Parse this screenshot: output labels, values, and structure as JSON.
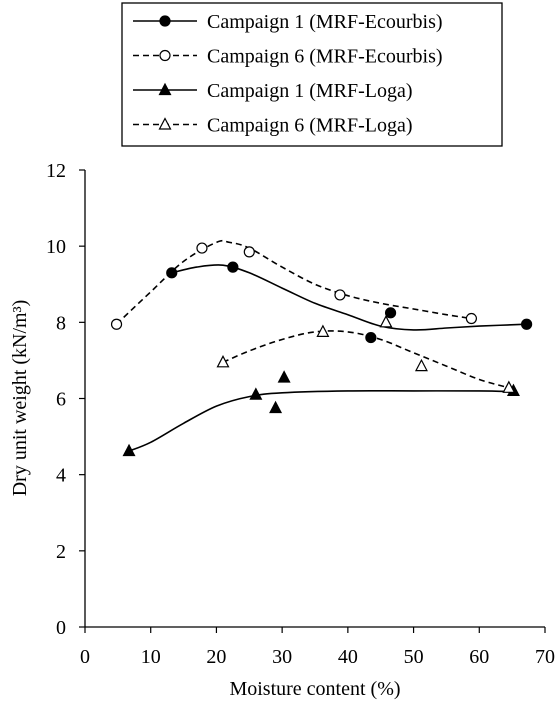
{
  "chart_data": {
    "type": "scatter",
    "xlabel": "Moisture content (%)",
    "ylabel": "Dry unit weight (kN/m³)",
    "xlim": [
      0,
      70
    ],
    "ylim": [
      0,
      12
    ],
    "xticks": [
      0,
      10,
      20,
      30,
      40,
      50,
      60,
      70
    ],
    "yticks": [
      0,
      2,
      4,
      6,
      8,
      10,
      12
    ],
    "xtick_labels": [
      "0",
      "10",
      "20",
      "30",
      "40",
      "50",
      "60",
      "70"
    ],
    "ytick_labels": [
      "0",
      "2",
      "4",
      "6",
      "8",
      "10",
      "12"
    ],
    "grid": false,
    "legend_position": "top",
    "series": [
      {
        "name": "Campaign 1 (MRF-Ecourbis)",
        "marker": "circle-filled",
        "line": "solid",
        "points": [
          [
            13.2,
            9.3
          ],
          [
            22.5,
            9.45
          ],
          [
            43.5,
            7.6
          ],
          [
            46.5,
            8.25
          ],
          [
            67.2,
            7.95
          ]
        ],
        "curve": [
          [
            13.2,
            9.3
          ],
          [
            17,
            9.45
          ],
          [
            21,
            9.5
          ],
          [
            25,
            9.3
          ],
          [
            30,
            8.9
          ],
          [
            35,
            8.5
          ],
          [
            40,
            8.2
          ],
          [
            45,
            7.9
          ],
          [
            50,
            7.8
          ],
          [
            55,
            7.85
          ],
          [
            60,
            7.9
          ],
          [
            67.2,
            7.95
          ]
        ]
      },
      {
        "name": "Campaign 6 (MRF-Ecourbis)",
        "marker": "circle-open",
        "line": "dashed",
        "points": [
          [
            4.8,
            7.95
          ],
          [
            17.8,
            9.95
          ],
          [
            25,
            9.85
          ],
          [
            38.8,
            8.72
          ],
          [
            58.8,
            8.1
          ]
        ],
        "curve": [
          [
            4.8,
            7.95
          ],
          [
            10,
            8.8
          ],
          [
            15,
            9.6
          ],
          [
            20,
            10.1
          ],
          [
            22,
            10.1
          ],
          [
            25,
            9.95
          ],
          [
            30,
            9.45
          ],
          [
            35,
            9.0
          ],
          [
            40,
            8.7
          ],
          [
            45,
            8.5
          ],
          [
            50,
            8.35
          ],
          [
            55,
            8.2
          ],
          [
            58.8,
            8.1
          ]
        ]
      },
      {
        "name": "Campaign 1 (MRF-Loga)",
        "marker": "triangle-filled",
        "line": "solid",
        "points": [
          [
            6.7,
            4.62
          ],
          [
            26,
            6.1
          ],
          [
            29,
            5.75
          ],
          [
            30.3,
            6.55
          ],
          [
            65.2,
            6.2
          ]
        ],
        "curve": [
          [
            6.7,
            4.62
          ],
          [
            10,
            4.85
          ],
          [
            15,
            5.35
          ],
          [
            20,
            5.8
          ],
          [
            25,
            6.05
          ],
          [
            30,
            6.15
          ],
          [
            40,
            6.2
          ],
          [
            50,
            6.2
          ],
          [
            60,
            6.2
          ],
          [
            65.2,
            6.18
          ]
        ]
      },
      {
        "name": "Campaign 6 (MRF-Loga)",
        "marker": "triangle-open",
        "line": "dashed",
        "points": [
          [
            21,
            6.95
          ],
          [
            36.2,
            7.75
          ],
          [
            45.8,
            8.0
          ],
          [
            51.2,
            6.85
          ],
          [
            64.5,
            6.28
          ]
        ],
        "curve": [
          [
            21,
            6.95
          ],
          [
            25,
            7.25
          ],
          [
            30,
            7.55
          ],
          [
            35,
            7.75
          ],
          [
            40,
            7.75
          ],
          [
            45,
            7.55
          ],
          [
            50,
            7.2
          ],
          [
            55,
            6.85
          ],
          [
            60,
            6.5
          ],
          [
            64.5,
            6.28
          ]
        ]
      }
    ]
  }
}
